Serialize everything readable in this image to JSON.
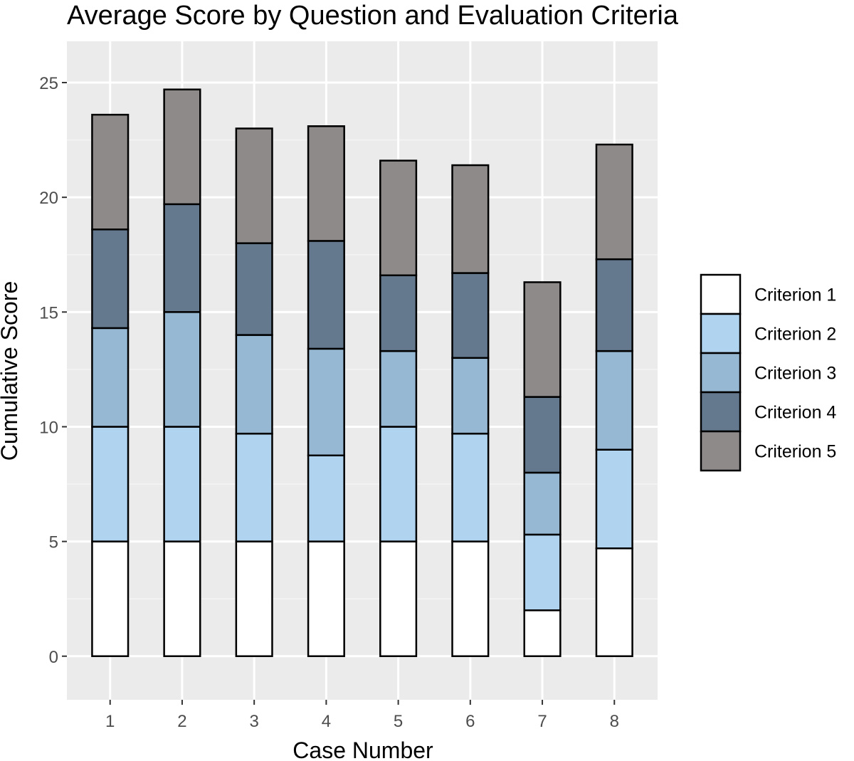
{
  "chart_data": {
    "type": "bar",
    "stacked": true,
    "title": "Average Score by Question and Evaluation Criteria",
    "xlabel": "Case Number",
    "ylabel": "Cumulative Score",
    "categories": [
      "1",
      "2",
      "3",
      "4",
      "5",
      "6",
      "7",
      "8"
    ],
    "y_ticks": [
      "0",
      "5",
      "10",
      "15",
      "20",
      "25"
    ],
    "ylim": [
      -1.9,
      26.8
    ],
    "grid": true,
    "legend_position": "right",
    "series": [
      {
        "name": "Criterion 1",
        "color": "#ffffff",
        "values": [
          5.0,
          5.0,
          5.0,
          5.0,
          5.0,
          5.0,
          2.0,
          4.7
        ]
      },
      {
        "name": "Criterion 2",
        "color": "#b0d4f0",
        "values": [
          5.0,
          5.0,
          4.7,
          3.75,
          5.0,
          4.7,
          3.3,
          4.3
        ]
      },
      {
        "name": "Criterion 3",
        "color": "#97b8d2",
        "values": [
          4.3,
          5.0,
          4.3,
          4.65,
          3.3,
          3.3,
          2.7,
          4.3
        ]
      },
      {
        "name": "Criterion 4",
        "color": "#64798e",
        "values": [
          4.3,
          4.7,
          4.0,
          4.7,
          3.3,
          3.7,
          3.3,
          4.0
        ]
      },
      {
        "name": "Criterion 5",
        "color": "#8e8a8a",
        "values": [
          5.0,
          5.0,
          5.0,
          5.0,
          5.0,
          4.7,
          5.0,
          5.0
        ]
      }
    ]
  }
}
